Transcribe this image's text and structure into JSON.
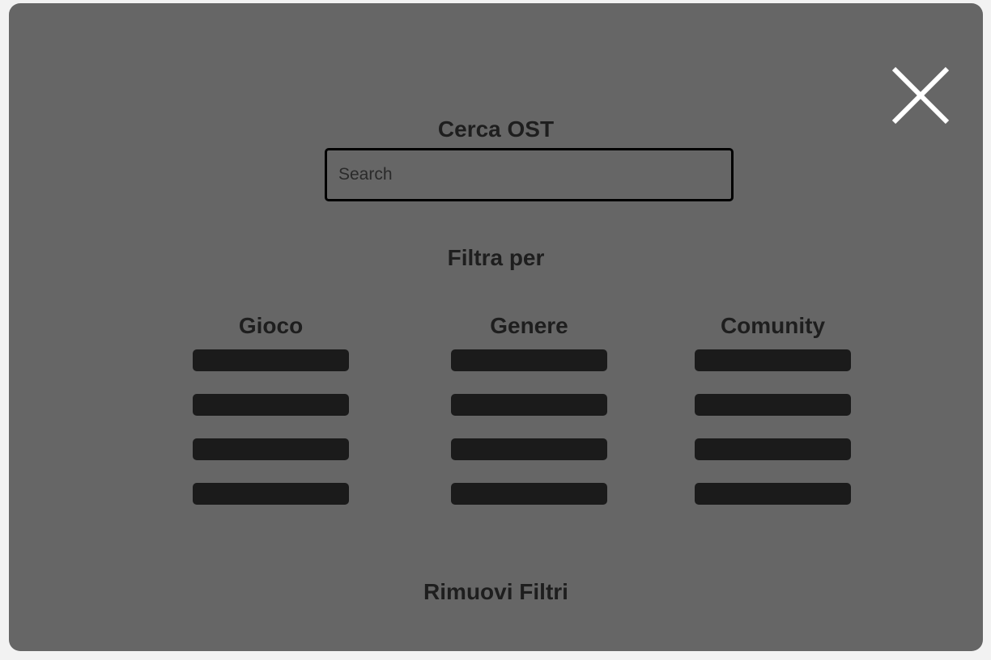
{
  "modal": {
    "close_icon": "close-icon",
    "search": {
      "title": "Cerca OST",
      "placeholder": "Search",
      "value": ""
    },
    "filters": {
      "title": "Filtra per",
      "columns": [
        {
          "label": "Gioco",
          "options_count": 4
        },
        {
          "label": "Genere",
          "options_count": 4
        },
        {
          "label": "Comunity",
          "options_count": 4
        }
      ]
    },
    "remove_filters_label": "Rimuovi Filtri"
  },
  "colors": {
    "page_background": "#f2f2f2",
    "modal_background": "#666666",
    "text": "#1e1e1e",
    "option_bar": "#1b1b1b",
    "close_icon": "#ffffff"
  }
}
